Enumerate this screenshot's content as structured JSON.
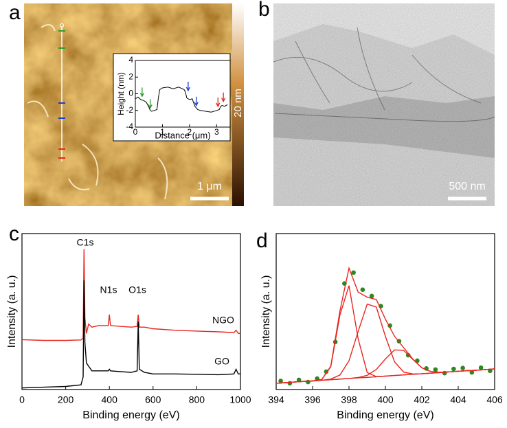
{
  "chart_data": [
    {
      "type": "afm-image",
      "label": "a",
      "colorbar_label": "20 nm",
      "scale_bar": "1 μm",
      "inset": {
        "type": "line",
        "xlabel": "Distance (μm)",
        "ylabel": "Height (nm)",
        "xlim": [
          0,
          3.5
        ],
        "ylim": [
          -4,
          4
        ],
        "xticks": [
          0,
          1,
          2,
          3
        ],
        "yticks": [
          -4,
          -2,
          0,
          2,
          4
        ],
        "color": "#000000",
        "x": [
          0,
          0.1,
          0.2,
          0.3,
          0.4,
          0.5,
          0.55,
          0.6,
          0.7,
          0.8,
          0.85,
          0.9,
          1.0,
          1.2,
          1.4,
          1.6,
          1.8,
          1.85,
          1.9,
          2.0,
          2.1,
          2.2,
          2.3,
          2.4,
          2.6,
          2.8,
          3.0,
          3.1,
          3.15,
          3.2,
          3.3,
          3.4
        ],
        "values": [
          -0.6,
          -0.4,
          -0.7,
          -0.8,
          -1.0,
          -1.6,
          -2.0,
          -2.1,
          -2.0,
          -1.9,
          -0.5,
          0.5,
          0.7,
          0.8,
          0.6,
          0.8,
          0.5,
          0.2,
          -0.5,
          -0.7,
          -0.6,
          -1.5,
          -1.9,
          -2.0,
          -2.1,
          -2.2,
          -2.0,
          -1.9,
          -1.5,
          -1.4,
          -1.5,
          -1.3
        ],
        "arrows": [
          {
            "x": 0.25,
            "y": -0.4,
            "color": "#2a9d2a"
          },
          {
            "x": 0.55,
            "y": -1.8,
            "color": "#2a9d2a"
          },
          {
            "x": 1.95,
            "y": 0.3,
            "color": "#1a3fd1"
          },
          {
            "x": 2.25,
            "y": -1.5,
            "color": "#1a3fd1"
          },
          {
            "x": 3.05,
            "y": -1.6,
            "color": "#e8251f"
          },
          {
            "x": 3.25,
            "y": -1.0,
            "color": "#e8251f"
          }
        ]
      }
    },
    {
      "type": "tem-image",
      "label": "b",
      "scale_bar": "500 nm"
    },
    {
      "type": "line",
      "label": "c",
      "xlabel": "Binding energy (eV)",
      "ylabel": "Intensity (a. u.)",
      "xlim": [
        0,
        1000
      ],
      "ylim": [
        0,
        100
      ],
      "xticks": [
        0,
        200,
        400,
        600,
        800,
        1000
      ],
      "annotations": [
        "C1s",
        "N1s",
        "O1s"
      ],
      "x": [
        0,
        100,
        200,
        270,
        280,
        284,
        288,
        295,
        305,
        320,
        350,
        395,
        400,
        405,
        450,
        500,
        527,
        532,
        537,
        560,
        600,
        700,
        800,
        900,
        970,
        980,
        990,
        1000
      ],
      "series": [
        {
          "name": "NGO",
          "color": "#e8251f",
          "values": [
            32,
            31.5,
            31.5,
            31.8,
            33,
            90,
            46,
            36,
            42,
            40,
            41,
            41,
            48,
            41,
            40.5,
            40,
            40.5,
            48,
            40,
            40,
            39,
            38,
            37.5,
            37,
            36.5,
            38,
            36,
            36
          ]
        },
        {
          "name": "GO",
          "color": "#000000",
          "values": [
            1,
            1.5,
            2,
            3,
            8,
            70,
            30,
            17,
            15,
            12,
            12,
            12,
            13,
            12,
            11.5,
            11,
            12,
            43.6,
            13,
            11,
            10,
            10,
            9.8,
            9.5,
            10,
            13,
            10,
            10
          ]
        }
      ]
    },
    {
      "type": "line",
      "label": "d",
      "xlabel": "Binding energy (eV)",
      "ylabel": "Intensity (a. u.)",
      "xlim": [
        394,
        406
      ],
      "ylim": [
        0,
        100
      ],
      "xticks": [
        394,
        396,
        398,
        400,
        402,
        404,
        406
      ],
      "x": [
        394,
        394.5,
        395,
        395.5,
        396,
        396.5,
        397,
        397.5,
        398,
        398.5,
        399,
        399.5,
        400,
        400.5,
        401,
        401.5,
        402,
        402.5,
        403,
        403.5,
        404,
        404.5,
        405,
        405.5,
        406
      ],
      "series": [
        {
          "style": "scatter",
          "color": "#2a8a1e",
          "x": [
            394.25,
            394.75,
            395.25,
            395.75,
            396.25,
            396.75,
            397.25,
            397.75,
            398.25,
            398.75,
            399.25,
            399.75,
            400.25,
            400.75,
            401.25,
            401.75,
            402.25,
            402.75,
            403.25,
            403.75,
            404.25,
            404.75,
            405.25,
            405.75
          ],
          "values": [
            5.5,
            4.0,
            6.2,
            4.8,
            7.0,
            11.5,
            30.5,
            68,
            75,
            64,
            60,
            53.5,
            41,
            31,
            22,
            18.5,
            13.5,
            12.8,
            10.5,
            13.2,
            13.8,
            11.0,
            14.0,
            12.0
          ]
        },
        {
          "style": "line",
          "color": "#e8251f",
          "values": [
            4.0,
            4.4,
            4.8,
            5.2,
            5.5,
            6.4,
            14.6,
            47.8,
            66.6,
            32.6,
            10.9,
            8.3,
            8.6,
            9.0,
            9.4,
            9.8,
            10.1,
            10.5,
            10.9,
            11.3,
            11.7,
            12.1,
            12.4,
            12.8,
            13.2
          ]
        },
        {
          "style": "line",
          "color": "#e8251f",
          "values": [
            4.0,
            4.4,
            4.8,
            5.2,
            5.5,
            5.9,
            6.7,
            9.3,
            18.4,
            37.2,
            54.8,
            52.9,
            34.1,
            17.8,
            11.2,
            10.0,
            10.1,
            10.5,
            10.9,
            11.3,
            11.7,
            12.1,
            12.4,
            12.8,
            13.2
          ]
        },
        {
          "style": "line",
          "color": "#e8251f",
          "values": [
            4.0,
            4.4,
            4.8,
            5.2,
            5.5,
            5.9,
            6.3,
            6.7,
            7.1,
            7.7,
            9.1,
            12.9,
            19.6,
            25.4,
            25.1,
            19.4,
            13.9,
            11.5,
            11.1,
            11.3,
            11.7,
            12.1,
            12.4,
            12.8,
            13.2
          ]
        },
        {
          "style": "line",
          "color": "#e8251f",
          "values": [
            4.0,
            4.4,
            4.8,
            5.2,
            5.5,
            6.4,
            15.0,
            50.4,
            77.9,
            62.5,
            59.2,
            57.7,
            45.1,
            34.2,
            26.9,
            19.6,
            13.9,
            11.5,
            11.1,
            11.3,
            11.7,
            12.1,
            12.4,
            12.8,
            13.2
          ]
        },
        {
          "style": "line",
          "color": "#e8251f",
          "values": [
            4.0,
            4.4,
            4.8,
            5.2,
            5.5,
            5.9,
            6.3,
            6.7,
            7.1,
            7.5,
            7.8,
            8.2,
            8.6,
            9.0,
            9.4,
            9.8,
            10.1,
            10.5,
            10.9,
            11.3,
            11.7,
            12.1,
            12.4,
            12.8,
            13.2
          ]
        }
      ]
    }
  ]
}
